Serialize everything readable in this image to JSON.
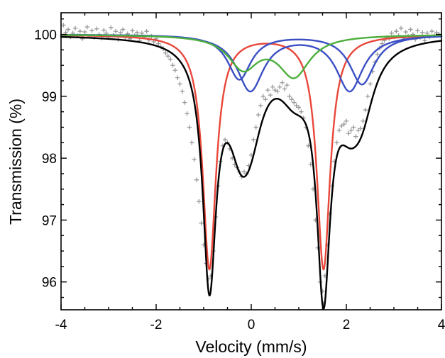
{
  "chart_data": {
    "type": "line",
    "title": "",
    "xlabel": "Velocity (mm/s)",
    "ylabel": "Transmission (%)",
    "xlim": [
      -4,
      4
    ],
    "ylim": [
      95.55,
      100.35
    ],
    "x_ticks": [
      -4,
      -2,
      0,
      2,
      4
    ],
    "x_tick_labels": [
      "-4",
      "-2",
      "0",
      "2",
      "4"
    ],
    "y_ticks": [
      96,
      97,
      98,
      99,
      100
    ],
    "y_tick_labels": [
      "96",
      "97",
      "98",
      "99",
      "100"
    ],
    "grid": false,
    "legend": "none",
    "marker_color": "#999999",
    "components": [
      {
        "color": "#e8473a",
        "doublet": [
          {
            "x": -0.88,
            "depth": 3.78,
            "width": 0.17
          },
          {
            "x": 1.52,
            "depth": 3.78,
            "width": 0.17
          }
        ]
      },
      {
        "color": "#3b4fc4",
        "doublet": [
          {
            "x": -0.02,
            "depth": 0.9,
            "width": 0.34
          },
          {
            "x": 2.07,
            "depth": 0.9,
            "width": 0.34
          }
        ]
      },
      {
        "color": "#3b4fc4",
        "doublet": [
          {
            "x": -0.25,
            "depth": 0.72,
            "width": 0.3
          },
          {
            "x": 2.33,
            "depth": 0.8,
            "width": 0.32
          }
        ]
      },
      {
        "color": "#4cae3c",
        "doublet": [
          {
            "x": -0.17,
            "depth": 0.52,
            "width": 0.38
          },
          {
            "x": 0.9,
            "depth": 0.65,
            "width": 0.4
          }
        ]
      }
    ],
    "fit": {
      "color": "#000000"
    },
    "measured_points": [
      [
        -3.95,
        100.15
      ],
      [
        -3.9,
        100.03
      ],
      [
        -3.85,
        100.08
      ],
      [
        -3.8,
        99.96
      ],
      [
        -3.75,
        100.02
      ],
      [
        -3.7,
        100.1
      ],
      [
        -3.65,
        99.98
      ],
      [
        -3.6,
        100.05
      ],
      [
        -3.55,
        99.93
      ],
      [
        -3.5,
        100.04
      ],
      [
        -3.45,
        100.12
      ],
      [
        -3.4,
        99.97
      ],
      [
        -3.35,
        100.06
      ],
      [
        -3.3,
        99.95
      ],
      [
        -3.25,
        100.09
      ],
      [
        -3.2,
        100.0
      ],
      [
        -3.15,
        99.94
      ],
      [
        -3.1,
        100.07
      ],
      [
        -3.05,
        100.02
      ],
      [
        -3.0,
        99.96
      ],
      [
        -2.95,
        100.11
      ],
      [
        -2.9,
        99.99
      ],
      [
        -2.85,
        100.05
      ],
      [
        -2.8,
        99.92
      ],
      [
        -2.75,
        100.03
      ],
      [
        -2.7,
        100.08
      ],
      [
        -2.65,
        99.95
      ],
      [
        -2.6,
        100.01
      ],
      [
        -2.55,
        99.93
      ],
      [
        -2.5,
        100.06
      ],
      [
        -2.45,
        99.98
      ],
      [
        -2.4,
        100.03
      ],
      [
        -2.35,
        99.9
      ],
      [
        -2.3,
        100.02
      ],
      [
        -2.25,
        99.96
      ],
      [
        -2.2,
        100.05
      ],
      [
        -2.15,
        99.91
      ],
      [
        -2.1,
        99.97
      ],
      [
        -2.05,
        99.88
      ],
      [
        -2.0,
        99.93
      ],
      [
        -1.95,
        99.85
      ],
      [
        -1.9,
        99.8
      ],
      [
        -1.85,
        99.77
      ],
      [
        -1.8,
        99.7
      ],
      [
        -1.75,
        99.65
      ],
      [
        -1.7,
        99.6
      ],
      [
        -1.65,
        99.5
      ],
      [
        -1.6,
        99.42
      ],
      [
        -1.55,
        99.3
      ],
      [
        -1.5,
        99.2
      ],
      [
        -1.45,
        99.08
      ],
      [
        -1.4,
        98.9
      ],
      [
        -1.35,
        98.72
      ],
      [
        -1.3,
        98.5
      ],
      [
        -1.25,
        98.25
      ],
      [
        -1.2,
        97.98
      ],
      [
        -1.15,
        97.65
      ],
      [
        -1.1,
        97.3
      ],
      [
        -1.05,
        96.95
      ],
      [
        -1.0,
        96.6
      ],
      [
        -0.95,
        96.3
      ],
      [
        -0.9,
        96.05
      ],
      [
        -0.85,
        96.1
      ],
      [
        -0.8,
        96.5
      ],
      [
        -0.75,
        97.05
      ],
      [
        -0.7,
        97.55
      ],
      [
        -0.65,
        97.95
      ],
      [
        -0.6,
        98.2
      ],
      [
        -0.55,
        98.3
      ],
      [
        -0.5,
        98.25
      ],
      [
        -0.45,
        98.15
      ],
      [
        -0.4,
        98.0
      ],
      [
        -0.35,
        97.9
      ],
      [
        -0.3,
        97.85
      ],
      [
        -0.25,
        97.78
      ],
      [
        -0.2,
        97.7
      ],
      [
        -0.15,
        97.78
      ],
      [
        -0.1,
        97.75
      ],
      [
        -0.05,
        97.88
      ],
      [
        0.0,
        98.05
      ],
      [
        0.05,
        98.3
      ],
      [
        0.1,
        98.5
      ],
      [
        0.15,
        98.7
      ],
      [
        0.2,
        98.85
      ],
      [
        0.25,
        99.0
      ],
      [
        0.3,
        98.95
      ],
      [
        0.35,
        99.1
      ],
      [
        0.4,
        99.02
      ],
      [
        0.45,
        99.15
      ],
      [
        0.5,
        99.1
      ],
      [
        0.55,
        99.08
      ],
      [
        0.6,
        99.15
      ],
      [
        0.65,
        99.22
      ],
      [
        0.7,
        99.12
      ],
      [
        0.75,
        99.18
      ],
      [
        0.8,
        99.0
      ],
      [
        0.85,
        98.95
      ],
      [
        0.9,
        98.9
      ],
      [
        0.95,
        98.85
      ],
      [
        1.0,
        98.82
      ],
      [
        1.05,
        98.75
      ],
      [
        1.1,
        98.65
      ],
      [
        1.15,
        98.5
      ],
      [
        1.2,
        98.2
      ],
      [
        1.25,
        97.9
      ],
      [
        1.3,
        97.5
      ],
      [
        1.35,
        97.0
      ],
      [
        1.4,
        96.55
      ],
      [
        1.45,
        96.0
      ],
      [
        1.5,
        95.85
      ],
      [
        1.52,
        95.65
      ],
      [
        1.55,
        96.1
      ],
      [
        1.6,
        96.6
      ],
      [
        1.65,
        97.1
      ],
      [
        1.7,
        97.55
      ],
      [
        1.75,
        97.95
      ],
      [
        1.8,
        98.25
      ],
      [
        1.85,
        98.45
      ],
      [
        1.9,
        98.52
      ],
      [
        1.95,
        98.55
      ],
      [
        2.0,
        98.6
      ],
      [
        2.05,
        98.4
      ],
      [
        2.1,
        98.45
      ],
      [
        2.15,
        98.5
      ],
      [
        2.2,
        98.35
      ],
      [
        2.25,
        98.45
      ],
      [
        2.3,
        98.48
      ],
      [
        2.35,
        98.6
      ],
      [
        2.4,
        98.78
      ],
      [
        2.45,
        99.0
      ],
      [
        2.5,
        99.2
      ],
      [
        2.55,
        99.4
      ],
      [
        2.6,
        99.55
      ],
      [
        2.65,
        99.68
      ],
      [
        2.7,
        99.78
      ],
      [
        2.75,
        99.85
      ],
      [
        2.8,
        99.9
      ],
      [
        2.85,
        99.95
      ],
      [
        2.9,
        99.93
      ],
      [
        2.95,
        100.02
      ],
      [
        3.0,
        99.96
      ],
      [
        3.05,
        100.05
      ],
      [
        3.1,
        99.98
      ],
      [
        3.15,
        100.1
      ],
      [
        3.2,
        99.94
      ],
      [
        3.25,
        100.04
      ],
      [
        3.3,
        99.97
      ],
      [
        3.35,
        100.08
      ],
      [
        3.4,
        100.0
      ],
      [
        3.45,
        99.92
      ],
      [
        3.5,
        100.06
      ],
      [
        3.55,
        99.95
      ],
      [
        3.6,
        100.03
      ],
      [
        3.65,
        99.9
      ],
      [
        3.7,
        100.02
      ],
      [
        3.75,
        99.96
      ],
      [
        3.8,
        100.05
      ],
      [
        3.85,
        99.98
      ],
      [
        3.9,
        100.03
      ],
      [
        3.95,
        100.0
      ]
    ]
  }
}
